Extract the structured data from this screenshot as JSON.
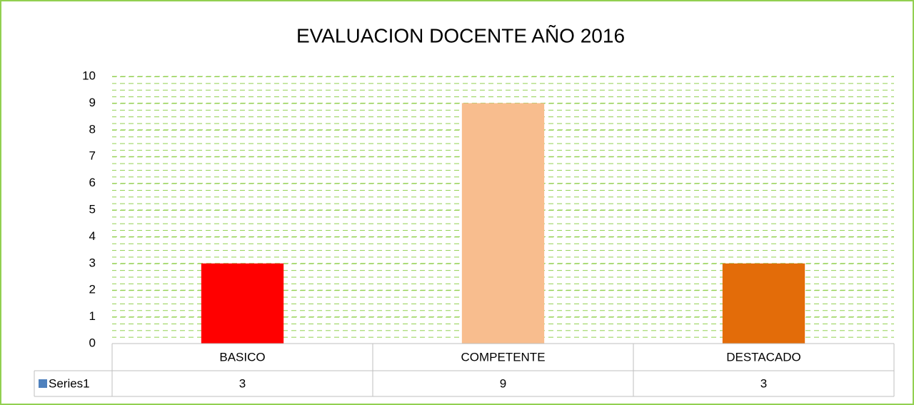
{
  "chart_data": {
    "type": "bar",
    "title": "EVALUACION DOCENTE   AÑO 2016",
    "categories": [
      "BASICO",
      "COMPETENTE",
      "DESTACADO"
    ],
    "series": [
      {
        "name": "Series1",
        "color": "#4f81bd",
        "values": [
          3,
          9,
          3
        ]
      }
    ],
    "bar_colors": [
      "#ff0000",
      "#f8bd8e",
      "#e36c09"
    ],
    "ylim": [
      0,
      10
    ],
    "yticks": [
      0,
      1,
      2,
      3,
      4,
      5,
      6,
      7,
      8,
      9,
      10
    ],
    "grid": true,
    "data_table": true
  }
}
